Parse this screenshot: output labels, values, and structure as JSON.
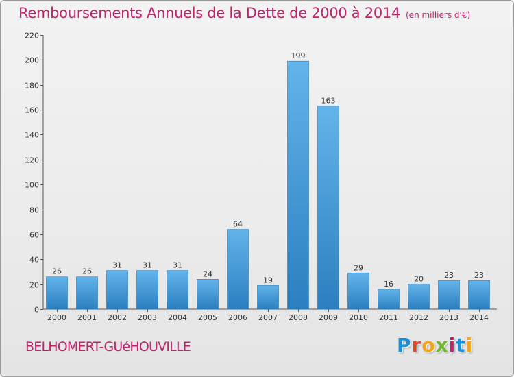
{
  "header": {
    "title": "Remboursements Annuels de la Dette de 2000 à 2014",
    "unit": "(en milliers d'€)"
  },
  "footer": {
    "commune": "BELHOMERT-GUéHOUVILLE",
    "brand": "Proxiti"
  },
  "colors": {
    "title": "#c2226a",
    "bar_top": "#62b4ea",
    "bar_bottom": "#2b7fc0",
    "axis": "#555555"
  },
  "chart_data": {
    "type": "bar",
    "title": "Remboursements Annuels de la Dette de 2000 à 2014",
    "subtitle": "(en milliers d'€)",
    "xlabel": "",
    "ylabel": "",
    "categories": [
      "2000",
      "2001",
      "2002",
      "2003",
      "2004",
      "2005",
      "2006",
      "2007",
      "2008",
      "2009",
      "2010",
      "2011",
      "2012",
      "2013",
      "2014"
    ],
    "values": [
      26,
      26,
      31,
      31,
      31,
      24,
      64,
      19,
      199,
      163,
      29,
      16,
      20,
      23,
      23
    ],
    "ylim": [
      0,
      220
    ],
    "yticks": [
      0,
      20,
      40,
      60,
      80,
      100,
      120,
      140,
      160,
      180,
      200,
      220
    ],
    "grid": false,
    "data_labels": true
  }
}
